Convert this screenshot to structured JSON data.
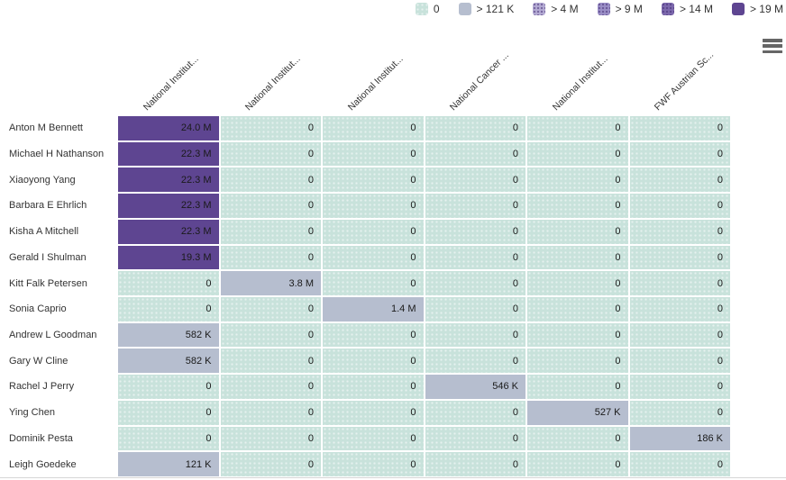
{
  "legend": {
    "items": [
      {
        "label": "0",
        "color": "#c8e2db",
        "pattern": "dots-light"
      },
      {
        "label": "> 121 K",
        "color": "#b6becf",
        "pattern": "solid"
      },
      {
        "label": "> 4 M",
        "color": "#b4abd4",
        "pattern": "dots-dark"
      },
      {
        "label": "> 9 M",
        "color": "#9a8ec6",
        "pattern": "dots-dark"
      },
      {
        "label": "> 14 M",
        "color": "#7d69ad",
        "pattern": "dots-dark"
      },
      {
        "label": "> 19 M",
        "color": "#5e4591",
        "pattern": "solid"
      }
    ]
  },
  "toolbar": {
    "menu_icon": "hamburger"
  },
  "columns": [
    {
      "label": "National Institut..."
    },
    {
      "label": "National Institut..."
    },
    {
      "label": "National Institut..."
    },
    {
      "label": "National Cancer ..."
    },
    {
      "label": "National Institut..."
    },
    {
      "label": "FWF Austrian Sc..."
    }
  ],
  "rows": [
    {
      "name": "Anton M Bennett",
      "values": [
        "24.0 M",
        "0",
        "0",
        "0",
        "0",
        "0"
      ],
      "levels": [
        5,
        0,
        0,
        0,
        0,
        0
      ]
    },
    {
      "name": "Michael H Nathanson",
      "values": [
        "22.3 M",
        "0",
        "0",
        "0",
        "0",
        "0"
      ],
      "levels": [
        5,
        0,
        0,
        0,
        0,
        0
      ]
    },
    {
      "name": "Xiaoyong Yang",
      "values": [
        "22.3 M",
        "0",
        "0",
        "0",
        "0",
        "0"
      ],
      "levels": [
        5,
        0,
        0,
        0,
        0,
        0
      ]
    },
    {
      "name": "Barbara E Ehrlich",
      "values": [
        "22.3 M",
        "0",
        "0",
        "0",
        "0",
        "0"
      ],
      "levels": [
        5,
        0,
        0,
        0,
        0,
        0
      ]
    },
    {
      "name": "Kisha A Mitchell",
      "values": [
        "22.3 M",
        "0",
        "0",
        "0",
        "0",
        "0"
      ],
      "levels": [
        5,
        0,
        0,
        0,
        0,
        0
      ]
    },
    {
      "name": "Gerald I Shulman",
      "values": [
        "19.3 M",
        "0",
        "0",
        "0",
        "0",
        "0"
      ],
      "levels": [
        5,
        0,
        0,
        0,
        0,
        0
      ]
    },
    {
      "name": "Kitt Falk Petersen",
      "values": [
        "0",
        "3.8 M",
        "0",
        "0",
        "0",
        "0"
      ],
      "levels": [
        0,
        1,
        0,
        0,
        0,
        0
      ]
    },
    {
      "name": "Sonia Caprio",
      "values": [
        "0",
        "0",
        "1.4 M",
        "0",
        "0",
        "0"
      ],
      "levels": [
        0,
        0,
        1,
        0,
        0,
        0
      ]
    },
    {
      "name": "Andrew L Goodman",
      "values": [
        "582 K",
        "0",
        "0",
        "0",
        "0",
        "0"
      ],
      "levels": [
        1,
        0,
        0,
        0,
        0,
        0
      ]
    },
    {
      "name": "Gary W Cline",
      "values": [
        "582 K",
        "0",
        "0",
        "0",
        "0",
        "0"
      ],
      "levels": [
        1,
        0,
        0,
        0,
        0,
        0
      ]
    },
    {
      "name": "Rachel J Perry",
      "values": [
        "0",
        "0",
        "0",
        "546 K",
        "0",
        "0"
      ],
      "levels": [
        0,
        0,
        0,
        1,
        0,
        0
      ]
    },
    {
      "name": "Ying Chen",
      "values": [
        "0",
        "0",
        "0",
        "0",
        "527 K",
        "0"
      ],
      "levels": [
        0,
        0,
        0,
        0,
        1,
        0
      ]
    },
    {
      "name": "Dominik Pesta",
      "values": [
        "0",
        "0",
        "0",
        "0",
        "0",
        "186 K"
      ],
      "levels": [
        0,
        0,
        0,
        0,
        0,
        1
      ]
    },
    {
      "name": "Leigh Goedeke",
      "values": [
        "121 K",
        "0",
        "0",
        "0",
        "0",
        "0"
      ],
      "levels": [
        1,
        0,
        0,
        0,
        0,
        0
      ]
    }
  ],
  "chart_data": {
    "type": "heatmap",
    "x_categories": [
      "National Institut...",
      "National Institut...",
      "National Institut...",
      "National Cancer ...",
      "National Institut...",
      "FWF Austrian Sc..."
    ],
    "y_categories": [
      "Anton M Bennett",
      "Michael H Nathanson",
      "Xiaoyong Yang",
      "Barbara E Ehrlich",
      "Kisha A Mitchell",
      "Gerald I Shulman",
      "Kitt Falk Petersen",
      "Sonia Caprio",
      "Andrew L Goodman",
      "Gary W Cline",
      "Rachel J Perry",
      "Ying Chen",
      "Dominik Pesta",
      "Leigh Goedeke"
    ],
    "values": [
      [
        24000000,
        0,
        0,
        0,
        0,
        0
      ],
      [
        22300000,
        0,
        0,
        0,
        0,
        0
      ],
      [
        22300000,
        0,
        0,
        0,
        0,
        0
      ],
      [
        22300000,
        0,
        0,
        0,
        0,
        0
      ],
      [
        22300000,
        0,
        0,
        0,
        0,
        0
      ],
      [
        19300000,
        0,
        0,
        0,
        0,
        0
      ],
      [
        0,
        3800000,
        0,
        0,
        0,
        0
      ],
      [
        0,
        0,
        1400000,
        0,
        0,
        0
      ],
      [
        582000,
        0,
        0,
        0,
        0,
        0
      ],
      [
        582000,
        0,
        0,
        0,
        0,
        0
      ],
      [
        0,
        0,
        0,
        546000,
        0,
        0
      ],
      [
        0,
        0,
        0,
        0,
        527000,
        0
      ],
      [
        0,
        0,
        0,
        0,
        0,
        186000
      ],
      [
        121000,
        0,
        0,
        0,
        0,
        0
      ]
    ],
    "value_labels": [
      [
        "24.0 M",
        "0",
        "0",
        "0",
        "0",
        "0"
      ],
      [
        "22.3 M",
        "0",
        "0",
        "0",
        "0",
        "0"
      ],
      [
        "22.3 M",
        "0",
        "0",
        "0",
        "0",
        "0"
      ],
      [
        "22.3 M",
        "0",
        "0",
        "0",
        "0",
        "0"
      ],
      [
        "22.3 M",
        "0",
        "0",
        "0",
        "0",
        "0"
      ],
      [
        "19.3 M",
        "0",
        "0",
        "0",
        "0",
        "0"
      ],
      [
        "0",
        "3.8 M",
        "0",
        "0",
        "0",
        "0"
      ],
      [
        "0",
        "0",
        "1.4 M",
        "0",
        "0",
        "0"
      ],
      [
        "582 K",
        "0",
        "0",
        "0",
        "0",
        "0"
      ],
      [
        "582 K",
        "0",
        "0",
        "0",
        "0",
        "0"
      ],
      [
        "0",
        "0",
        "0",
        "546 K",
        "0",
        "0"
      ],
      [
        "0",
        "0",
        "0",
        "0",
        "527 K",
        "0"
      ],
      [
        "0",
        "0",
        "0",
        "0",
        "0",
        "186 K"
      ],
      [
        "121 K",
        "0",
        "0",
        "0",
        "0",
        "0"
      ]
    ],
    "legend_buckets": [
      "0",
      "> 121 K",
      "> 4 M",
      "> 9 M",
      "> 14 M",
      "> 19 M"
    ],
    "legend_colors": [
      "#c8e2db",
      "#b6becf",
      "#b4abd4",
      "#9a8ec6",
      "#7d69ad",
      "#5e4591"
    ],
    "legend_position": "top-right",
    "grid": true
  }
}
